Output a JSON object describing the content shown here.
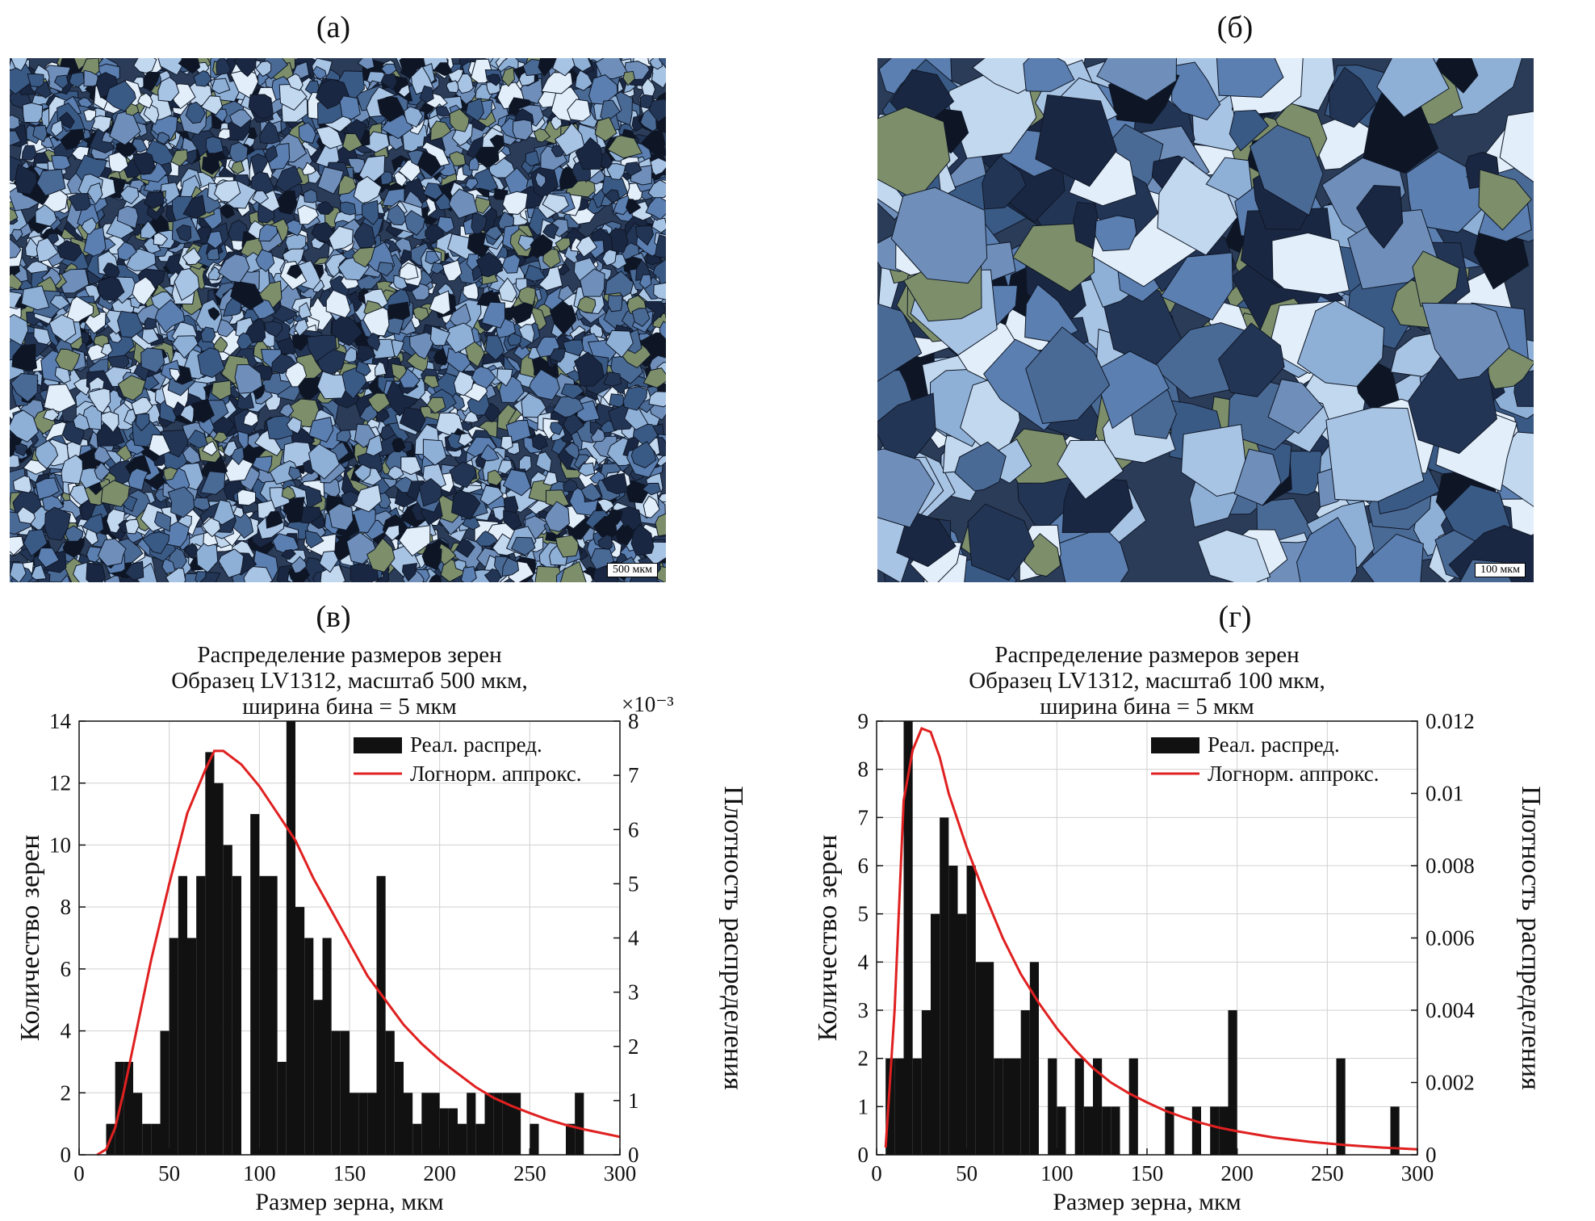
{
  "panels": {
    "a_label": "(а)",
    "b_label": "(б)",
    "c_label": "(в)",
    "d_label": "(г)"
  },
  "micrographs": [
    {
      "scale_text": "500 мкм"
    },
    {
      "scale_text": "100 мкм"
    }
  ],
  "colors": {
    "bars": "#111111",
    "fit": "#e02020",
    "grid": "#d0d0d0"
  },
  "chart_data": [
    {
      "type": "bar",
      "title": [
        "Распределение размеров зерен",
        "Образец LV1312, масштаб 500 мкм,",
        "ширина бина = 5 мкм"
      ],
      "xlabel": "Размер зерна, мкм",
      "ylabel": "Количество зерен",
      "y2label": "Плотность распределения",
      "y2_exponent": "×10⁻³",
      "xlim": [
        0,
        300
      ],
      "ylim": [
        0,
        14
      ],
      "y2lim": [
        0,
        8
      ],
      "xticks": [
        0,
        50,
        100,
        150,
        200,
        250,
        300
      ],
      "yticks": [
        0,
        2,
        4,
        6,
        8,
        10,
        12,
        14
      ],
      "y2ticks": [
        0,
        1,
        2,
        3,
        4,
        5,
        6,
        7,
        8
      ],
      "grid": true,
      "legend_position": "top-right",
      "legend": [
        "Реал. распред.",
        "Логнорм. аппрокс."
      ],
      "bin_width": 5,
      "bins": [
        [
          15,
          1
        ],
        [
          20,
          3
        ],
        [
          25,
          3
        ],
        [
          30,
          2
        ],
        [
          35,
          1
        ],
        [
          40,
          1
        ],
        [
          45,
          4
        ],
        [
          50,
          7
        ],
        [
          55,
          9
        ],
        [
          60,
          7
        ],
        [
          65,
          9
        ],
        [
          70,
          13
        ],
        [
          75,
          12
        ],
        [
          80,
          10
        ],
        [
          85,
          9
        ],
        [
          95,
          11
        ],
        [
          100,
          9
        ],
        [
          105,
          9
        ],
        [
          110,
          3
        ],
        [
          115,
          14
        ],
        [
          120,
          8
        ],
        [
          125,
          7
        ],
        [
          130,
          5
        ],
        [
          135,
          7
        ],
        [
          140,
          4
        ],
        [
          145,
          4
        ],
        [
          150,
          2
        ],
        [
          155,
          2
        ],
        [
          160,
          2
        ],
        [
          165,
          9
        ],
        [
          170,
          4
        ],
        [
          175,
          3
        ],
        [
          180,
          2
        ],
        [
          185,
          1
        ],
        [
          190,
          2
        ],
        [
          195,
          2
        ],
        [
          200,
          1.5
        ],
        [
          205,
          1.5
        ],
        [
          210,
          1
        ],
        [
          215,
          2
        ],
        [
          220,
          1
        ],
        [
          225,
          2
        ],
        [
          230,
          2
        ],
        [
          235,
          2
        ],
        [
          240,
          2
        ],
        [
          250,
          1
        ],
        [
          270,
          1
        ],
        [
          275,
          2
        ]
      ],
      "fit_density": [
        [
          10,
          0.0
        ],
        [
          15,
          0.1
        ],
        [
          20,
          0.5
        ],
        [
          25,
          1.2
        ],
        [
          30,
          2.0
        ],
        [
          40,
          3.6
        ],
        [
          50,
          5.0
        ],
        [
          60,
          6.3
        ],
        [
          70,
          7.1
        ],
        [
          75,
          7.45
        ],
        [
          80,
          7.45
        ],
        [
          90,
          7.2
        ],
        [
          100,
          6.8
        ],
        [
          110,
          6.3
        ],
        [
          120,
          5.8
        ],
        [
          130,
          5.1
        ],
        [
          140,
          4.5
        ],
        [
          150,
          3.9
        ],
        [
          160,
          3.3
        ],
        [
          170,
          2.85
        ],
        [
          180,
          2.4
        ],
        [
          190,
          2.05
        ],
        [
          200,
          1.75
        ],
        [
          210,
          1.5
        ],
        [
          220,
          1.25
        ],
        [
          230,
          1.05
        ],
        [
          240,
          0.9
        ],
        [
          250,
          0.77
        ],
        [
          260,
          0.65
        ],
        [
          270,
          0.55
        ],
        [
          280,
          0.47
        ],
        [
          290,
          0.4
        ],
        [
          300,
          0.33
        ]
      ]
    },
    {
      "type": "bar",
      "title": [
        "Распределение размеров зерен",
        "Образец LV1312, масштаб 100 мкм,",
        "ширина бина = 5 мкм"
      ],
      "xlabel": "Размер зерна, мкм",
      "ylabel": "Количество зерен",
      "y2label": "Плотность распределения",
      "y2_exponent": "",
      "xlim": [
        0,
        300
      ],
      "ylim": [
        0,
        9
      ],
      "y2lim": [
        0,
        0.012
      ],
      "xticks": [
        0,
        50,
        100,
        150,
        200,
        250,
        300
      ],
      "yticks": [
        0,
        1,
        2,
        3,
        4,
        5,
        6,
        7,
        8,
        9
      ],
      "y2ticks": [
        0,
        0.002,
        0.004,
        0.006,
        0.008,
        0.01,
        0.012
      ],
      "grid": true,
      "legend_position": "top-right",
      "legend": [
        "Реал. распред.",
        "Логнорм. аппрокс."
      ],
      "bin_width": 5,
      "bins": [
        [
          5,
          2
        ],
        [
          10,
          2
        ],
        [
          15,
          9
        ],
        [
          20,
          2
        ],
        [
          25,
          3
        ],
        [
          30,
          5
        ],
        [
          35,
          7
        ],
        [
          40,
          6
        ],
        [
          45,
          5
        ],
        [
          50,
          6
        ],
        [
          55,
          4
        ],
        [
          60,
          4
        ],
        [
          65,
          2
        ],
        [
          70,
          2
        ],
        [
          75,
          2
        ],
        [
          80,
          3
        ],
        [
          85,
          4
        ],
        [
          95,
          2
        ],
        [
          100,
          1
        ],
        [
          110,
          2
        ],
        [
          115,
          1
        ],
        [
          120,
          2
        ],
        [
          125,
          1
        ],
        [
          130,
          1
        ],
        [
          140,
          2
        ],
        [
          160,
          1
        ],
        [
          175,
          1
        ],
        [
          185,
          1
        ],
        [
          190,
          1
        ],
        [
          195,
          3
        ],
        [
          255,
          2
        ],
        [
          285,
          1
        ]
      ],
      "fit_density": [
        [
          5,
          0.0002
        ],
        [
          10,
          0.004
        ],
        [
          15,
          0.0098
        ],
        [
          20,
          0.0112
        ],
        [
          25,
          0.0118
        ],
        [
          30,
          0.0117
        ],
        [
          35,
          0.011
        ],
        [
          40,
          0.01
        ],
        [
          50,
          0.0085
        ],
        [
          60,
          0.0072
        ],
        [
          70,
          0.006
        ],
        [
          80,
          0.005
        ],
        [
          90,
          0.0042
        ],
        [
          100,
          0.0035
        ],
        [
          110,
          0.0029
        ],
        [
          120,
          0.0024
        ],
        [
          130,
          0.002
        ],
        [
          140,
          0.0017
        ],
        [
          150,
          0.00145
        ],
        [
          160,
          0.00122
        ],
        [
          170,
          0.00104
        ],
        [
          180,
          0.00088
        ],
        [
          190,
          0.00075
        ],
        [
          200,
          0.00065
        ],
        [
          220,
          0.00048
        ],
        [
          240,
          0.00036
        ],
        [
          260,
          0.00027
        ],
        [
          280,
          0.0002
        ],
        [
          300,
          0.00015
        ]
      ]
    }
  ]
}
